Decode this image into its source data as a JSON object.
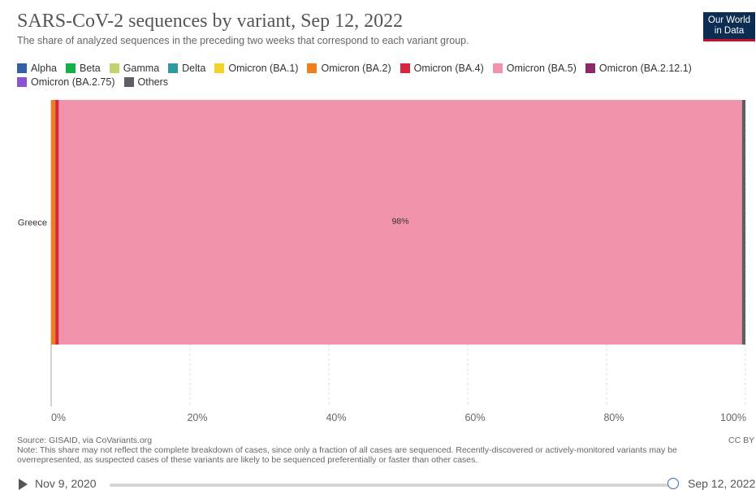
{
  "title": "SARS-CoV-2 sequences by variant, Sep 12, 2022",
  "subtitle": "The share of analyzed sequences in the preceding two weeks that correspond to each variant group.",
  "logo": {
    "line1": "Our World",
    "line2": "in Data"
  },
  "legend": [
    {
      "label": "Alpha",
      "color": "#3360a9"
    },
    {
      "label": "Beta",
      "color": "#13b14a"
    },
    {
      "label": "Gamma",
      "color": "#bfd46e"
    },
    {
      "label": "Delta",
      "color": "#2e9c9f"
    },
    {
      "label": "Omicron (BA.1)",
      "color": "#f5d22b"
    },
    {
      "label": "Omicron (BA.2)",
      "color": "#ee7f1c"
    },
    {
      "label": "Omicron (BA.4)",
      "color": "#d6283c"
    },
    {
      "label": "Omicron (BA.5)",
      "color": "#f093ab"
    },
    {
      "label": "Omicron (BA.2.12.1)",
      "color": "#8d2a6b"
    },
    {
      "label": "Omicron (BA.2.75)",
      "color": "#8c52d6"
    },
    {
      "label": "Others",
      "color": "#5c6066"
    }
  ],
  "chart_data": {
    "type": "bar",
    "orientation": "horizontal",
    "stacked": true,
    "categories": [
      "Greece"
    ],
    "series": [
      {
        "name": "Omicron (BA.2)",
        "color": "#ee7f1c",
        "values": [
          0.6
        ]
      },
      {
        "name": "Omicron (BA.4)",
        "color": "#d6283c",
        "values": [
          0.5
        ]
      },
      {
        "name": "Omicron (BA.5)",
        "color": "#f093ab",
        "values": [
          98.4
        ]
      },
      {
        "name": "Others",
        "color": "#5c6066",
        "values": [
          0.5
        ]
      }
    ],
    "data_labels": [
      {
        "series": "Omicron (BA.5)",
        "category": "Greece",
        "text": "98%"
      }
    ],
    "xlim": [
      0,
      100
    ],
    "xticks": [
      "0%",
      "20%",
      "40%",
      "60%",
      "80%",
      "100%"
    ],
    "xtick_values": [
      0,
      20,
      40,
      60,
      80,
      100
    ],
    "grid": true
  },
  "footer": {
    "source": "Source: GISAID, via CoVariants.org",
    "note": "Note: This share may not reflect the complete breakdown of cases, since only a fraction of all cases are sequenced. Recently-discovered or actively-monitored variants may be overrepresented, as suspected cases of these variants are likely to be sequenced preferentially or faster than other cases.",
    "license": "CC BY"
  },
  "timeline": {
    "start": "Nov 9, 2020",
    "end": "Sep 12, 2022",
    "position": 1.0
  }
}
